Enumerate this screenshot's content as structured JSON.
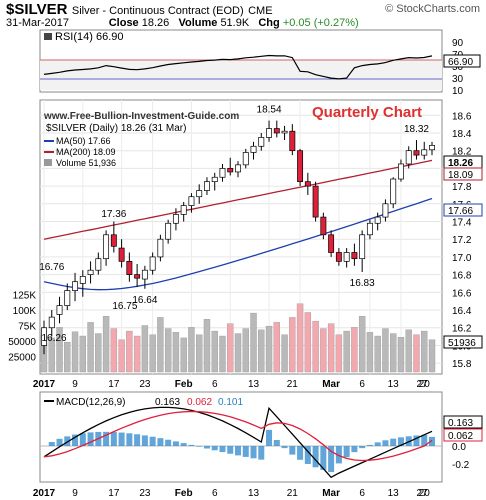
{
  "header": {
    "symbol": "$SILVER",
    "name": "Silver - Continuous Contract (EOD)",
    "exchange": "CME",
    "watermark": "© StockCharts.com",
    "date": "31-Mar-2017",
    "close_label": "Close",
    "close_value": "18.26",
    "volume_label": "Volume",
    "volume_value": "51.9K",
    "chg_label": "Chg",
    "chg_value": "+0.05 (+0.27%)"
  },
  "annotations": {
    "site": "www.Free-Bullion-Investment-Guide.com",
    "chart_title": "Quarterly Chart"
  },
  "rsi": {
    "label": "RSI(14) 66.90",
    "ticks": [
      "90",
      "70",
      "50",
      "30",
      "10"
    ],
    "current_label": "66.90"
  },
  "price": {
    "legend": {
      "main": "$SILVER (Daily) 18.26 (31 Mar)",
      "ma50": "MA(50) 17.66",
      "ma200": "MA(200) 18.09",
      "volume": "Volume 51,936"
    },
    "y_ticks": [
      "18.6",
      "18.4",
      "18.2",
      "18.0",
      "17.8",
      "17.6",
      "17.4",
      "17.2",
      "17.0",
      "16.8",
      "16.6",
      "16.4",
      "16.2",
      "16.0",
      "15.8"
    ],
    "volume_ticks": [
      "125K",
      "100K",
      "75K",
      "50000",
      "25000"
    ],
    "current_label": "18.26",
    "ma200_label": "18.09",
    "ma50_label": "17.66",
    "volume_label": "51936",
    "callouts": [
      "18.54",
      "18.32",
      "17.36",
      "16.76",
      "16.75",
      "16.64",
      "16.83",
      "16.26"
    ],
    "colors": {
      "up": "#ffffff",
      "down": "#e0203a",
      "ma50": "#1f3fb0",
      "ma200": "#b02030",
      "vol_up": "#b9b9b9",
      "vol_down": "#f2a8ae"
    }
  },
  "macd": {
    "label_prefix": "MACD(12,26,9)",
    "label_macd": "0.163",
    "label_signal": "0.062",
    "label_hist": "0.101",
    "ticks": [
      "0.0",
      "-0.2"
    ],
    "macd_label": "0.163",
    "signal_label": "0.062"
  },
  "x_axis": {
    "labels": [
      "2017",
      "9",
      "17",
      "23",
      "Feb",
      "6",
      "13",
      "21",
      "Mar",
      "6",
      "13",
      "20",
      "27"
    ]
  },
  "chart_data": {
    "type": "candlestick",
    "title": "$SILVER Silver - Continuous Contract (EOD)",
    "ylim": [
      15.7,
      18.75
    ],
    "ohlc": [
      [
        16.0,
        16.28,
        15.9,
        16.2
      ],
      [
        16.2,
        16.4,
        16.1,
        16.32
      ],
      [
        16.35,
        16.55,
        16.25,
        16.45
      ],
      [
        16.45,
        16.7,
        16.4,
        16.62
      ],
      [
        16.62,
        16.82,
        16.5,
        16.72
      ],
      [
        16.7,
        16.85,
        16.55,
        16.78
      ],
      [
        16.8,
        16.95,
        16.7,
        16.85
      ],
      [
        16.85,
        17.05,
        16.8,
        16.98
      ],
      [
        16.98,
        17.3,
        16.9,
        17.25
      ],
      [
        17.25,
        17.4,
        17.05,
        17.12
      ],
      [
        17.1,
        17.2,
        16.88,
        16.95
      ],
      [
        16.95,
        17.05,
        16.72,
        16.8
      ],
      [
        16.8,
        16.92,
        16.66,
        16.76
      ],
      [
        16.75,
        16.9,
        16.64,
        16.85
      ],
      [
        16.85,
        17.05,
        16.8,
        17.0
      ],
      [
        17.0,
        17.25,
        16.95,
        17.2
      ],
      [
        17.2,
        17.42,
        17.15,
        17.38
      ],
      [
        17.38,
        17.55,
        17.3,
        17.48
      ],
      [
        17.48,
        17.62,
        17.4,
        17.58
      ],
      [
        17.58,
        17.72,
        17.5,
        17.68
      ],
      [
        17.68,
        17.82,
        17.6,
        17.75
      ],
      [
        17.75,
        17.9,
        17.7,
        17.85
      ],
      [
        17.85,
        17.95,
        17.75,
        17.9
      ],
      [
        17.9,
        18.05,
        17.85,
        18.0
      ],
      [
        18.0,
        18.12,
        17.92,
        17.96
      ],
      [
        17.96,
        18.08,
        17.9,
        18.04
      ],
      [
        18.04,
        18.22,
        18.0,
        18.18
      ],
      [
        18.18,
        18.3,
        18.1,
        18.25
      ],
      [
        18.25,
        18.4,
        18.2,
        18.35
      ],
      [
        18.35,
        18.54,
        18.3,
        18.45
      ],
      [
        18.45,
        18.54,
        18.35,
        18.4
      ],
      [
        18.4,
        18.48,
        18.32,
        18.42
      ],
      [
        18.42,
        18.5,
        18.15,
        18.2
      ],
      [
        18.2,
        18.22,
        17.8,
        17.85
      ],
      [
        17.85,
        17.95,
        17.7,
        17.8
      ],
      [
        17.8,
        17.85,
        17.4,
        17.45
      ],
      [
        17.45,
        17.5,
        17.2,
        17.25
      ],
      [
        17.25,
        17.3,
        17.0,
        17.05
      ],
      [
        17.05,
        17.1,
        16.9,
        16.95
      ],
      [
        16.95,
        17.1,
        16.88,
        17.05
      ],
      [
        17.05,
        17.15,
        16.9,
        16.98
      ],
      [
        16.98,
        17.3,
        16.83,
        17.25
      ],
      [
        17.25,
        17.42,
        17.2,
        17.38
      ],
      [
        17.38,
        17.5,
        17.3,
        17.45
      ],
      [
        17.45,
        17.65,
        17.4,
        17.6
      ],
      [
        17.6,
        17.9,
        17.55,
        17.88
      ],
      [
        17.88,
        18.1,
        17.85,
        18.05
      ],
      [
        18.05,
        18.25,
        18.0,
        18.2
      ],
      [
        18.2,
        18.32,
        18.1,
        18.15
      ],
      [
        18.15,
        18.3,
        18.1,
        18.21
      ],
      [
        18.21,
        18.3,
        18.15,
        18.26
      ]
    ],
    "volume_k": [
      60,
      55,
      72,
      48,
      65,
      58,
      80,
      62,
      90,
      70,
      52,
      66,
      58,
      75,
      60,
      88,
      70,
      64,
      55,
      72,
      60,
      85,
      66,
      58,
      78,
      62,
      70,
      95,
      68,
      74,
      80,
      60,
      88,
      110,
      96,
      82,
      70,
      78,
      60,
      66,
      72,
      90,
      64,
      58,
      70,
      62,
      56,
      68,
      60,
      66,
      52
    ],
    "ma50_from": 16.72,
    "ma50_low": 16.7,
    "ma50_to": 17.66,
    "ma200_from": 17.2,
    "ma200_to": 18.09,
    "rsi_last": 66.9,
    "macd_last": 0.163,
    "signal_last": 0.062,
    "hist_last": 0.101
  }
}
